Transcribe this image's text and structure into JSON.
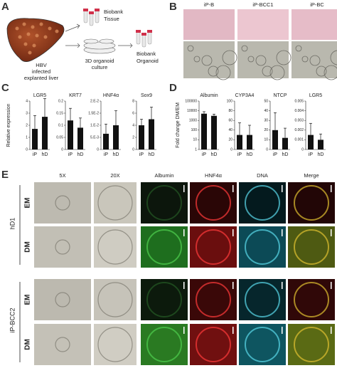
{
  "panel_labels": [
    "A",
    "B",
    "C",
    "D",
    "E"
  ],
  "panel_a": {
    "tissue": [
      "Biobank",
      "Tissue"
    ],
    "liver": [
      "HBV",
      "infected",
      "explanted liver"
    ],
    "culture": [
      "3D organoid",
      "culture"
    ],
    "organoid": [
      "Biobank",
      "Organoid"
    ]
  },
  "panel_b": {
    "columns": [
      "iP-B",
      "iP-BCC1",
      "iP-BC"
    ]
  },
  "panel_c": {
    "y_label": "Relative expression"
  },
  "panel_d": {
    "y_label": "Fold change DM/EM"
  },
  "chart_data": [
    {
      "type": "bar",
      "title": "LGR5",
      "categories": [
        "iP",
        "hD"
      ],
      "values": [
        1.7,
        2.7
      ],
      "errors": [
        1.1,
        1.5
      ],
      "color": "#111111",
      "ylim": [
        0,
        4
      ],
      "yticks": [
        0,
        1,
        2,
        3,
        4
      ]
    },
    {
      "type": "bar",
      "title": "KRT7",
      "categories": [
        "iP",
        "hD"
      ],
      "values": [
        0.12,
        0.09
      ],
      "errors": [
        0.05,
        0.04
      ],
      "color": "#111111",
      "ylim": [
        0,
        0.2
      ],
      "yticks": [
        0,
        0.05,
        0.1,
        0.15,
        0.2
      ]
    },
    {
      "type": "bar",
      "title": "HNF4α",
      "categories": [
        "iP",
        "hD"
      ],
      "values": [
        0.0065,
        0.01
      ],
      "errors": [
        0.004,
        0.006
      ],
      "color": "#111111",
      "ylim": [
        0,
        0.02
      ],
      "yticks": [
        0,
        {
          "value": 0.005,
          "label": "5.E-3"
        },
        {
          "value": 0.01,
          "label": "1.E-2"
        },
        {
          "value": 0.015,
          "label": "1.5E-2"
        },
        {
          "value": 0.02,
          "label": "2.E-2"
        }
      ]
    },
    {
      "type": "bar",
      "title": "Sox9",
      "categories": [
        "iP",
        "hD"
      ],
      "values": [
        4,
        5
      ],
      "errors": [
        1,
        2
      ],
      "color": "#111111",
      "ylim": [
        0,
        8
      ],
      "yticks": [
        0,
        2,
        4,
        6,
        8
      ]
    },
    {
      "type": "bar",
      "title": "Albumin",
      "categories": [
        "iP",
        "hD"
      ],
      "values": [
        5000,
        3000
      ],
      "errors": [
        3000,
        1500
      ],
      "color": "#111111",
      "log_y": true,
      "ylim": [
        1,
        100000
      ],
      "yticks": [
        1,
        10,
        100,
        1000,
        10000,
        100000
      ]
    },
    {
      "type": "bar",
      "title": "CYP3A4",
      "categories": [
        "iP",
        "hD"
      ],
      "values": [
        30,
        30
      ],
      "errors": [
        25,
        20
      ],
      "color": "#111111",
      "ylim": [
        0,
        100
      ],
      "yticks": [
        0,
        20,
        40,
        60,
        80,
        100
      ]
    },
    {
      "type": "bar",
      "title": "NTCP",
      "categories": [
        "iP",
        "hD"
      ],
      "values": [
        20,
        12
      ],
      "errors": [
        18,
        10
      ],
      "color": "#111111",
      "ylim": [
        0,
        50
      ],
      "yticks": [
        0,
        10,
        20,
        30,
        40,
        50
      ]
    },
    {
      "type": "bar",
      "title": "LGR5",
      "categories": [
        "iP",
        "hD"
      ],
      "values": [
        0.0015,
        0.001
      ],
      "errors": [
        0.0012,
        0.0006
      ],
      "color": "#111111",
      "ylim": [
        0,
        0.005
      ],
      "yticks": [
        0,
        0.001,
        0.002,
        0.003,
        0.004,
        0.005
      ]
    }
  ],
  "panel_e": {
    "columns": [
      "5X",
      "20X",
      "Albumin",
      "HNF4α",
      "DNA",
      "Merge"
    ],
    "groups": [
      {
        "name": "hD1",
        "rows": [
          "EM",
          "DM"
        ]
      },
      {
        "name": "iP-BCC2",
        "rows": [
          "EM",
          "DM"
        ]
      }
    ]
  }
}
